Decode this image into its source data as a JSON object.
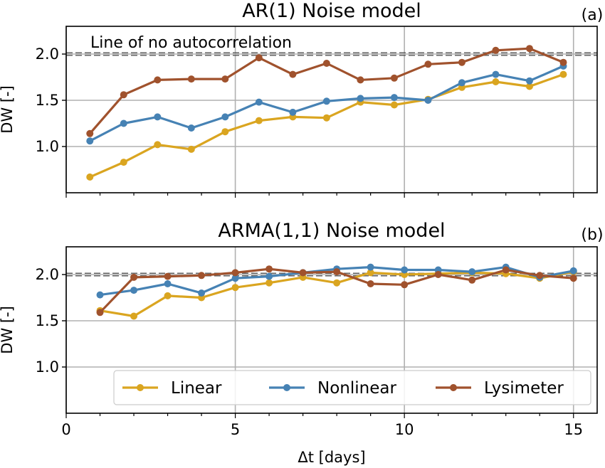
{
  "chart_data": [
    {
      "type": "line",
      "title": "AR(1) Noise model",
      "panel_label": "(a)",
      "xlabel": "",
      "ylabel": "DW [-]",
      "xlim": [
        0,
        15.7
      ],
      "ylim": [
        0.5,
        2.3
      ],
      "yticks": [
        1.0,
        1.5,
        2.0
      ],
      "ytick_labels": [
        "1.0",
        "1.5",
        "2.0"
      ],
      "xticks": [
        0,
        5,
        10,
        15
      ],
      "xtick_labels_shown": false,
      "grid": true,
      "reference_line": {
        "y": 2.0,
        "style": "dashed"
      },
      "annotation": "Line of no autocorrelation",
      "series": [
        {
          "name": "Linear",
          "color": "#DAA520",
          "x": [
            0.7,
            1.7,
            2.7,
            3.7,
            4.7,
            5.7,
            6.7,
            7.7,
            8.7,
            9.7,
            10.7,
            11.7,
            12.7,
            13.7,
            14.7
          ],
          "y": [
            0.67,
            0.83,
            1.02,
            0.97,
            1.16,
            1.28,
            1.32,
            1.31,
            1.48,
            1.45,
            1.51,
            1.64,
            1.7,
            1.65,
            1.78
          ]
        },
        {
          "name": "Nonlinear",
          "color": "#4682B4",
          "x": [
            0.7,
            1.7,
            2.7,
            3.7,
            4.7,
            5.7,
            6.7,
            7.7,
            8.7,
            9.7,
            10.7,
            11.7,
            12.7,
            13.7,
            14.7
          ],
          "y": [
            1.06,
            1.25,
            1.32,
            1.2,
            1.32,
            1.48,
            1.37,
            1.49,
            1.52,
            1.53,
            1.5,
            1.69,
            1.78,
            1.71,
            1.87
          ]
        },
        {
          "name": "Lysimeter",
          "color": "#A0522D",
          "x": [
            0.7,
            1.7,
            2.7,
            3.7,
            4.7,
            5.7,
            6.7,
            7.7,
            8.7,
            9.7,
            10.7,
            11.7,
            12.7,
            13.7,
            14.7
          ],
          "y": [
            1.14,
            1.56,
            1.72,
            1.73,
            1.73,
            1.96,
            1.78,
            1.9,
            1.72,
            1.74,
            1.89,
            1.91,
            2.04,
            2.06,
            1.91
          ]
        }
      ]
    },
    {
      "type": "line",
      "title": "ARMA(1,1) Noise model",
      "panel_label": "(b)",
      "xlabel": "Δt [days]",
      "ylabel": "DW [-]",
      "xlim": [
        0,
        15.7
      ],
      "ylim": [
        0.5,
        2.3
      ],
      "yticks": [
        1.0,
        1.5,
        2.0
      ],
      "ytick_labels": [
        "1.0",
        "1.5",
        "2.0"
      ],
      "xticks": [
        0,
        5,
        10,
        15
      ],
      "xtick_labels": [
        "0",
        "5",
        "10",
        "15"
      ],
      "grid": true,
      "reference_line": {
        "y": 2.0,
        "style": "dashed"
      },
      "legend_position": "lower center",
      "series": [
        {
          "name": "Linear",
          "color": "#DAA520",
          "x": [
            1,
            2,
            3,
            4,
            5,
            6,
            7,
            8,
            9,
            10,
            11,
            12,
            13,
            14,
            15
          ],
          "y": [
            1.61,
            1.55,
            1.77,
            1.75,
            1.86,
            1.91,
            1.97,
            1.91,
            2.02,
            2.0,
            2.01,
            2.02,
            2.01,
            1.96,
            2.03
          ]
        },
        {
          "name": "Nonlinear",
          "color": "#4682B4",
          "x": [
            1,
            2,
            3,
            4,
            5,
            6,
            7,
            8,
            9,
            10,
            11,
            12,
            13,
            14,
            15
          ],
          "y": [
            1.78,
            1.83,
            1.9,
            1.8,
            1.96,
            1.98,
            2.02,
            2.06,
            2.08,
            2.05,
            2.05,
            2.03,
            2.08,
            1.97,
            2.04
          ]
        },
        {
          "name": "Lysimeter",
          "color": "#A0522D",
          "x": [
            1,
            2,
            3,
            4,
            5,
            6,
            7,
            8,
            9,
            10,
            11,
            12,
            13,
            14,
            15
          ],
          "y": [
            1.59,
            1.97,
            1.98,
            1.99,
            2.02,
            2.06,
            2.02,
            2.03,
            1.9,
            1.89,
            2.0,
            1.94,
            2.05,
            1.99,
            1.96
          ]
        }
      ]
    }
  ]
}
